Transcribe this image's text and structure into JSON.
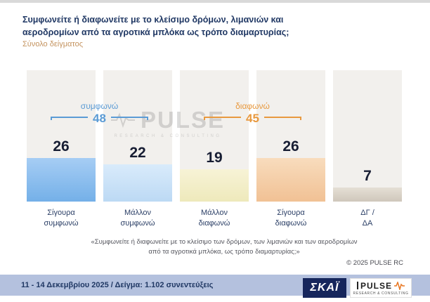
{
  "header": {
    "title_line1": "Συμφωνείτε ή διαφωνείτε με το κλείσιμο δρόμων, λιμανιών και",
    "title_line2": "αεροδρομίων από τα αγροτικά μπλόκα ως τρόπο διαμαρτυρίας;",
    "subtitle": "Σύνολο δείγματος"
  },
  "chart_data": {
    "type": "bar",
    "title": "Συμφωνείτε ή διαφωνείτε με το κλείσιμο δρόμων, λιμανιών και αεροδρομίων από τα αγροτικά μπλόκα ως τρόπο διαμαρτυρίας; (Σύνολο δείγματος)",
    "categories": [
      "Σίγουρα συμφωνώ",
      "Μάλλον συμφωνώ",
      "Μάλλον διαφωνώ",
      "Σίγουρα διαφωνώ",
      "ΔΓ / ΔΑ"
    ],
    "category_lines": [
      [
        "Σίγουρα",
        "συμφωνώ"
      ],
      [
        "Μάλλον",
        "συμφωνώ"
      ],
      [
        "Μάλλον",
        "διαφωνώ"
      ],
      [
        "Σίγουρα",
        "διαφωνώ"
      ],
      [
        "ΔΓ /",
        "ΔΑ"
      ]
    ],
    "values": [
      26,
      22,
      19,
      26,
      7
    ],
    "bar_colors": [
      "#74b0e8",
      "#bcd9f4",
      "#eee9bb",
      "#f1c194",
      "#cfc7bb"
    ],
    "bar_colors_light": [
      "#a6cdf4",
      "#d9ebfb",
      "#f7f3d6",
      "#f8dcbd",
      "#e5dfd5"
    ],
    "groups": [
      {
        "label": "συμφωνώ",
        "value": 48,
        "color": "#5b9bd5",
        "spans": [
          0,
          1
        ]
      },
      {
        "label": "διαφωνώ",
        "value": 45,
        "color": "#e8993f",
        "spans": [
          2,
          3
        ]
      }
    ],
    "ylim": [
      0,
      30
    ],
    "grid": false,
    "legend_position": "none"
  },
  "watermark": {
    "text": "PULSE",
    "subtext": "RESEARCH & CONSULTING"
  },
  "footnote": {
    "line1": "«Συμφωνείτε ή διαφωνείτε με το κλείσιμο των δρόμων, των λιμανιών και των αεροδρομίων",
    "line2": "από τα αγροτικά μπλόκα, ως τρόπο διαμαρτυρίας;»",
    "copyright": "©  2025  PULSE RC"
  },
  "footer": {
    "text": "11 - 14 Δεκεμβρίου 2025  /  Δείγμα:  1.102 συνεντεύξεις",
    "skai_label": "ΣΚΑΪ",
    "pulse_label": "PULSE",
    "pulse_sub": "RESEARCH & CONSULTING"
  },
  "colors": {
    "title": "#203864",
    "subtitle": "#c4935f",
    "agree": "#5b9bd5",
    "disagree": "#e8993f",
    "footer_strip": "#b4c1de",
    "skai_bg": "#16265c"
  }
}
